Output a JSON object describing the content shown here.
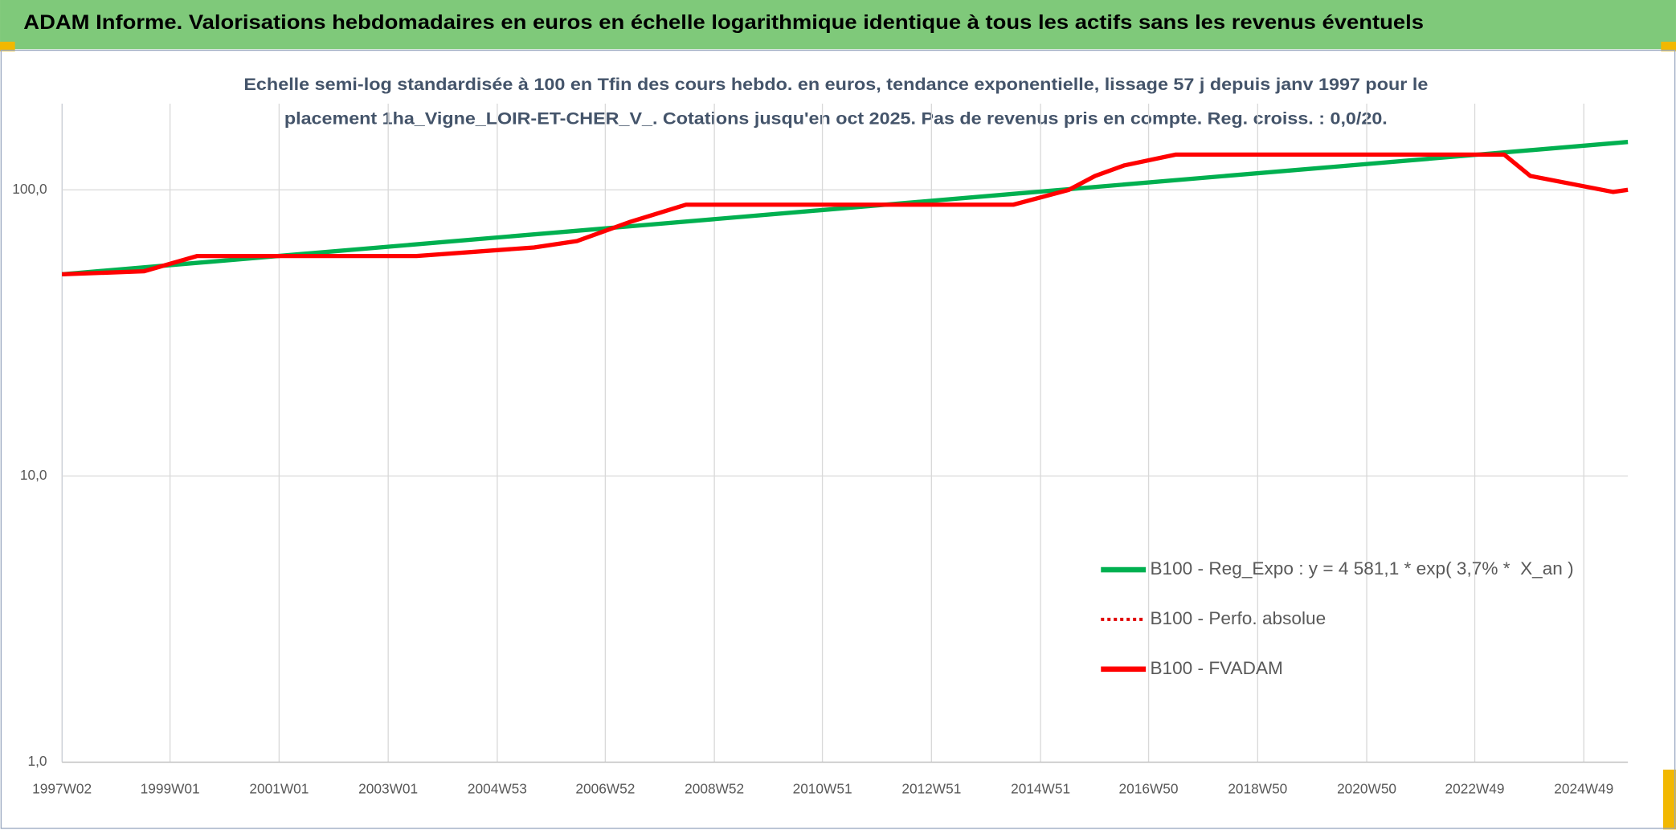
{
  "header": "ADAM Informe. Valorisations hebdomadaires en euros en échelle logarithmique identique à tous les actifs sans les revenus éventuels",
  "chart_data": {
    "type": "line",
    "title": [
      "Echelle semi-log standardisée à 100 en Tfin des cours hebdo. en euros, tendance exponentielle, lissage 57 j depuis janv 1997 pour le",
      "placement 1ha_Vigne_LOIR-ET-CHER_V_. Cotations jusqu'en oct 2025. Pas de revenus pris en compte. Reg. croiss. : 0,0/20."
    ],
    "log_scale": true,
    "grid": true,
    "ylim": [
      1,
      200
    ],
    "yticks": [
      {
        "value": 1,
        "label": "1,0"
      },
      {
        "value": 10,
        "label": "10,0"
      },
      {
        "value": 100,
        "label": "100,0"
      }
    ],
    "xlim": [
      "1997W02",
      "2025W39"
    ],
    "xticks": [
      "1997W02",
      "1999W01",
      "2001W01",
      "2003W01",
      "2004W53",
      "2006W52",
      "2008W52",
      "2010W51",
      "2012W51",
      "2014W51",
      "2016W50",
      "2018W50",
      "2020W50",
      "2022W49",
      "2024W49"
    ],
    "series": [
      {
        "name": "B100 - Reg_Expo : y = 4 581,1 * exp( 3,7% *  X_an )",
        "color": "#00b050",
        "dash": false,
        "x": [
          "1997W02",
          "2025W39"
        ],
        "values": [
          50.7,
          147
        ]
      },
      {
        "name": "B100 - Perfo. absolue",
        "color": "#e00000",
        "dash": true,
        "x": [
          "1997W02",
          "1998W28",
          "1999W27",
          "2003W28",
          "2005W36",
          "2006W25",
          "2007W24",
          "2008W25",
          "2014W25",
          "2015W26",
          "2015W51",
          "2016W27",
          "2017W24",
          "2023W25",
          "2023W50",
          "2025W25",
          "2025W39"
        ],
        "values": [
          50.7,
          51.9,
          58.7,
          58.7,
          62.9,
          66.2,
          77.3,
          88.7,
          88.7,
          100,
          111.8,
          121.8,
          132.8,
          132.8,
          111.8,
          98.3,
          100
        ]
      },
      {
        "name": "B100 - FVADAM",
        "color": "#ff0000",
        "dash": false,
        "x": [
          "1997W02",
          "1998W28",
          "1999W27",
          "2003W28",
          "2005W36",
          "2006W25",
          "2007W24",
          "2008W25",
          "2014W25",
          "2015W26",
          "2015W51",
          "2016W27",
          "2017W24",
          "2023W25",
          "2023W50",
          "2025W25",
          "2025W39"
        ],
        "values": [
          50.7,
          51.9,
          58.7,
          58.7,
          62.9,
          66.2,
          77.3,
          88.7,
          88.7,
          100,
          111.8,
          121.8,
          132.8,
          132.8,
          111.8,
          98.3,
          100
        ]
      }
    ]
  }
}
